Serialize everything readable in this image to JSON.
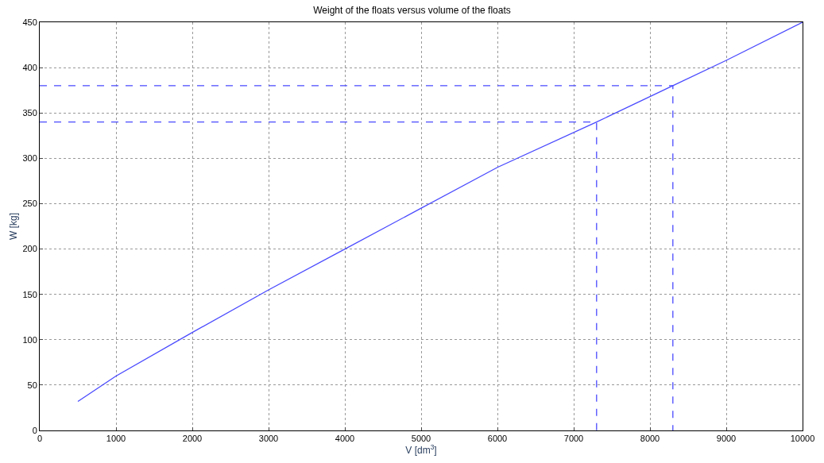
{
  "chart_data": {
    "type": "line",
    "title": "Weight of the floats versus volume of the floats",
    "xlabel": "V [dm$^{3}$]",
    "ylabel": "W [kg]",
    "xlim": [
      0,
      10000
    ],
    "xticks": [
      0,
      1000,
      2000,
      3000,
      4000,
      5000,
      6000,
      7000,
      8000,
      9000,
      10000
    ],
    "ylim": [
      0,
      450
    ],
    "yticks": [
      0,
      50,
      100,
      150,
      200,
      250,
      300,
      350,
      400,
      450
    ],
    "grid": true,
    "series": [
      {
        "color": "#4a4aff",
        "x": [
          500,
          1000,
          2000,
          3000,
          4000,
          5000,
          6000,
          7300,
          8300,
          9000,
          10000
        ],
        "values": [
          32,
          60,
          108,
          155,
          200,
          245,
          290,
          340,
          380,
          408,
          450
        ],
        "line_style": "solid"
      },
      {
        "color": "#4a4aff",
        "x": [
          0,
          8300,
          8300
        ],
        "values": [
          380,
          380,
          0
        ],
        "line_style": "dashed"
      },
      {
        "color": "#4a4aff",
        "x": [
          0,
          7300,
          7300
        ],
        "values": [
          340,
          340,
          0
        ],
        "line_style": "dashed"
      }
    ]
  }
}
